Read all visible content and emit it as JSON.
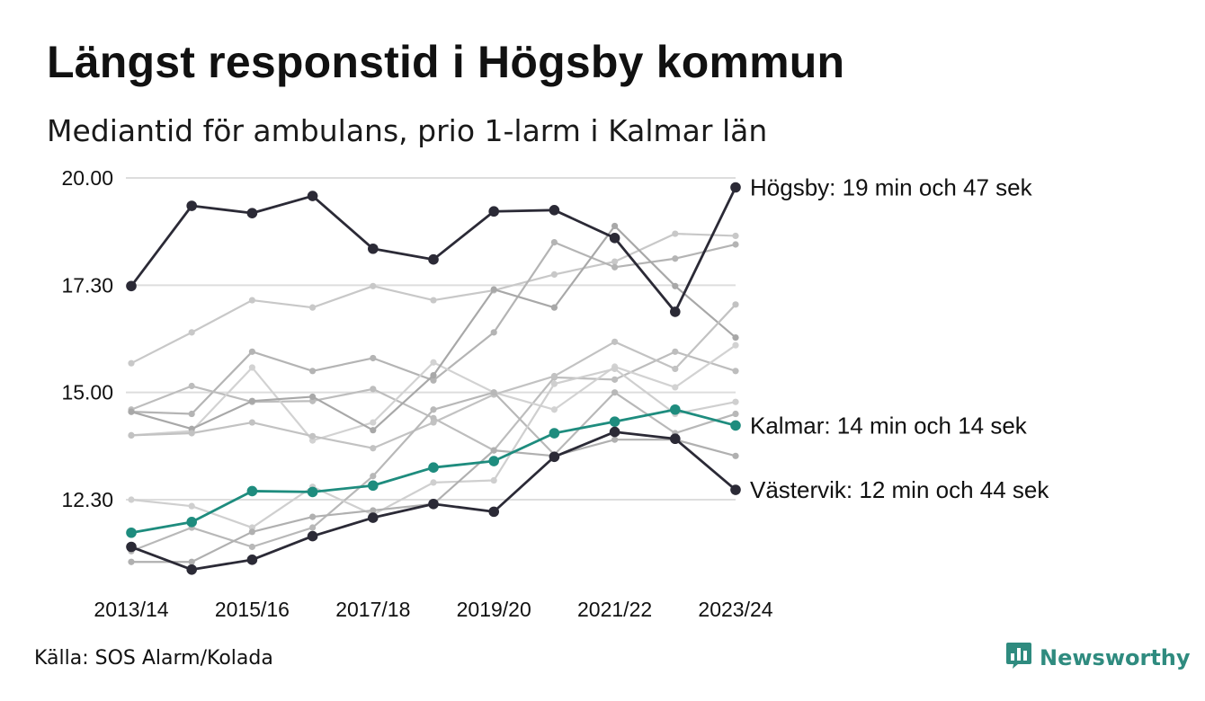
{
  "title": "Längst responstid i Högsby kommun",
  "subtitle": "Mediantid för ambulans, prio 1-larm i Kalmar län",
  "source": "Källa: SOS Alarm/Kolada",
  "brand": {
    "name": "Newsworthy",
    "color": "#2f8b7f",
    "icon": "bar-chart-speech-icon"
  },
  "colors": {
    "highlight_dark": "#2b2a36",
    "highlight_teal": "#1e8c7e",
    "grid": "#dddddd"
  },
  "chart_data": {
    "type": "line",
    "x": [
      "2013/14",
      "2014/15",
      "2015/16",
      "2016/17",
      "2017/18",
      "2018/19",
      "2019/20",
      "2020/21",
      "2021/22",
      "2022/23",
      "2023/24"
    ],
    "x_tick_labels": [
      "2013/14",
      "2015/16",
      "2017/18",
      "2019/20",
      "2021/22",
      "2023/24"
    ],
    "y_tick_labels": [
      "20.00",
      "17.30",
      "15.00",
      "12.30"
    ],
    "y_ticks_minutes": [
      20,
      17.5,
      15,
      12.5
    ],
    "ylim": [
      10.4,
      20.2
    ],
    "grid": "horizontal",
    "highlighted_series": [
      {
        "label": "Högsby: 19 min och 47 sek",
        "color": "#2b2a36",
        "values": [
          17.48,
          19.35,
          19.18,
          19.58,
          18.35,
          18.1,
          19.22,
          19.25,
          18.6,
          16.88,
          19.78
        ]
      },
      {
        "label": "Kalmar: 14 min och 14 sek",
        "color": "#1e8c7e",
        "values": [
          11.73,
          11.98,
          12.7,
          12.68,
          12.83,
          13.25,
          13.4,
          14.05,
          14.32,
          14.6,
          14.23
        ]
      },
      {
        "label": "Västervik: 12 min och 44 sek",
        "color": "#2b2a36",
        "values": [
          11.4,
          10.87,
          11.1,
          11.65,
          12.08,
          12.4,
          12.22,
          13.5,
          14.08,
          13.92,
          12.73
        ]
      }
    ],
    "background_series": [
      {
        "color": "#c8c8c8",
        "values": [
          15.68,
          16.4,
          17.15,
          16.98,
          17.48,
          17.15,
          17.38,
          17.75,
          18.05,
          18.7,
          18.65
        ]
      },
      {
        "color": "#b4b4b4",
        "values": [
          14.55,
          14.5,
          15.95,
          15.5,
          15.8,
          15.28,
          16.4,
          18.5,
          17.92,
          18.12,
          18.45
        ]
      },
      {
        "color": "#bdbdbd",
        "values": [
          14.6,
          15.15,
          14.78,
          14.8,
          15.08,
          14.4,
          13.65,
          15.35,
          15.3,
          15.95,
          15.5
        ]
      },
      {
        "color": "#d2d2d2",
        "values": [
          14.0,
          14.1,
          15.58,
          13.88,
          14.3,
          15.7,
          15.0,
          14.6,
          15.6,
          15.12,
          16.1
        ]
      },
      {
        "color": "#a8a8a8",
        "values": [
          14.55,
          14.15,
          14.8,
          14.9,
          14.12,
          15.4,
          17.4,
          16.98,
          18.88,
          17.48,
          16.28
        ]
      },
      {
        "color": "#c2c2c2",
        "values": [
          14.0,
          14.05,
          14.3,
          13.98,
          13.7,
          14.3,
          14.95,
          15.38,
          16.18,
          15.55,
          17.05
        ]
      },
      {
        "color": "#b8b8b8",
        "values": [
          11.3,
          11.85,
          11.4,
          11.85,
          13.05,
          14.6,
          15.0,
          13.55,
          15.0,
          14.05,
          14.5
        ]
      },
      {
        "color": "#cfcfcf",
        "values": [
          12.5,
          12.35,
          11.85,
          12.8,
          12.15,
          12.9,
          12.95,
          15.2,
          15.55,
          14.5,
          14.78
        ]
      },
      {
        "color": "#b0b0b0",
        "values": [
          11.05,
          11.05,
          11.75,
          12.1,
          12.25,
          12.4,
          13.65,
          13.52,
          13.9,
          13.9,
          13.52
        ]
      }
    ]
  }
}
